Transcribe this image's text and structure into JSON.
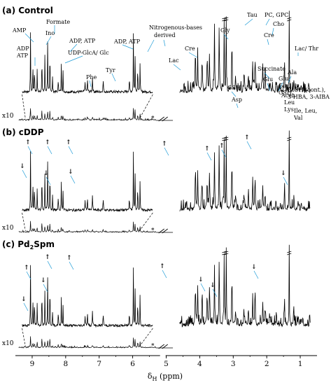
{
  "chart_data": {
    "type": "line",
    "xlabel_main": "δ",
    "xlabel_sub": "H",
    "xlabel_unit": " (ppm)",
    "x_reversed": true,
    "xlim": [
      9.5,
      0.5
    ],
    "xticks": [
      "9",
      "8",
      "7",
      "6",
      "5",
      "4",
      "3",
      "2",
      "1"
    ],
    "axis_break": true,
    "inset_scale_label": "x10",
    "panels": [
      {
        "title": "(a) Control",
        "annotations": [
          "AMP",
          "ADP",
          "ATP",
          "Formate",
          "Ino",
          "ADP, ATP",
          "UDP-GlcA/ Glc",
          "Phe",
          "Tyr",
          "ADP, ATP",
          "Nitrogenous-bases",
          "derived",
          "Tau",
          "PC, GPC",
          "Gly",
          "Cho",
          "Cre",
          "Cre",
          "Lac",
          "Succinate",
          "Glu",
          "GSH",
          "Asp",
          "Glu,",
          "Gln,",
          "GSH",
          "Acet.",
          "Leu",
          "Lys",
          "Lac/ Thr",
          "Ala",
          "EtOH (cont.),",
          "3-HBA, 3-AIBA",
          "Ile, Leu,",
          "Val"
        ]
      },
      {
        "title": "(b) cDDP",
        "arrows": [
          "↑",
          "↑",
          "↑",
          "↓",
          "↓",
          "↓",
          "↑",
          "↑",
          "↑",
          "↑",
          "↓"
        ]
      },
      {
        "title": "(c) Pd",
        "title_sub": "2",
        "title_tail": "Spm",
        "arrows": [
          "↑",
          "↑",
          "↑",
          "↓",
          "↓",
          "↑",
          "↓",
          "↓",
          "↓"
        ]
      }
    ]
  }
}
